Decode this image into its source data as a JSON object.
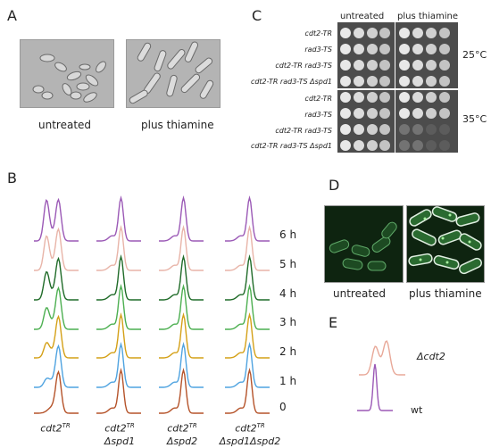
{
  "panels": {
    "A": {
      "letter": "A",
      "left_label": "untreated",
      "right_label": "plus thiamine"
    },
    "B": {
      "letter": "B",
      "times": [
        "6 h",
        "5 h",
        "4 h",
        "3 h",
        "2 h",
        "1 h",
        "0"
      ],
      "trace_colors": [
        "#9b59b6",
        "#e8b4a8",
        "#1f6b28",
        "#4caf50",
        "#d4a017",
        "#4fa3e0",
        "#b5532a"
      ],
      "strains": [
        {
          "line1": "cdt2",
          "sup1": "TR",
          "line2": ""
        },
        {
          "line1": "cdt2",
          "sup1": "TR",
          "line2": "Δspd1"
        },
        {
          "line1": "cdt2",
          "sup1": "TR",
          "line2": "Δspd2"
        },
        {
          "line1": "cdt2",
          "sup1": "TR",
          "line2": "Δspd1Δspd2"
        }
      ]
    },
    "C": {
      "letter": "C",
      "col_untreated": "untreated",
      "col_thiamine": "plus thiamine",
      "strains_25": [
        "cdt2-TR",
        "rad3-TS",
        "cdt2-TR rad3-TS",
        "cdt2-TR rad3-TS Δspd1"
      ],
      "strains_35": [
        "cdt2-TR",
        "rad3-TS",
        "cdt2-TR rad3-TS",
        "cdt2-TR rad3-TS Δspd1"
      ],
      "temp_25": "25°C",
      "temp_35": "35°C"
    },
    "D": {
      "letter": "D",
      "left_label": "untreated",
      "right_label": "plus thiamine"
    },
    "E": {
      "letter": "E",
      "top_label": "Δcdt2",
      "bottom_label": "wt",
      "top_color": "#e8a898",
      "bottom_color": "#9b59b6"
    }
  }
}
